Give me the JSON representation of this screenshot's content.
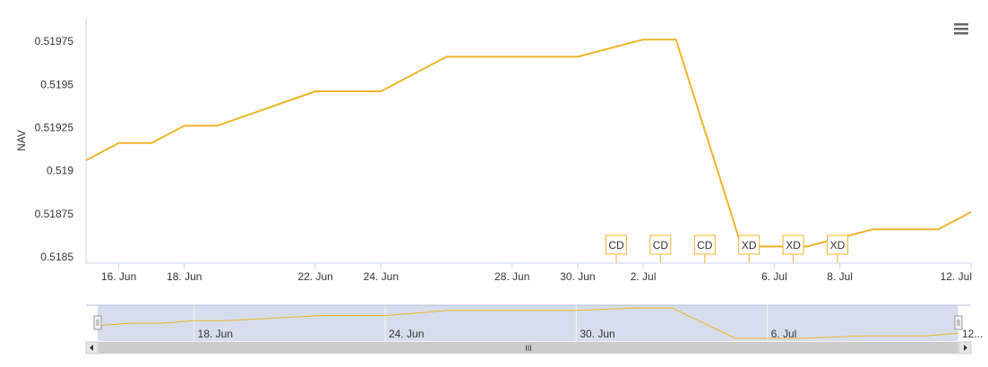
{
  "chart_data": {
    "type": "line",
    "title": "",
    "xlabel": "",
    "ylabel": "NAV",
    "ylim": [
      0.5185,
      0.52
    ],
    "yticks": [
      "0.5185",
      "0.51875",
      "0.519",
      "0.51925",
      "0.5195",
      "0.51975"
    ],
    "xlim": [
      "2024-06-15",
      "2024-07-12"
    ],
    "xticks": [
      {
        "date": "2024-06-16",
        "label": "16. Jun"
      },
      {
        "date": "2024-06-18",
        "label": "18. Jun"
      },
      {
        "date": "2024-06-22",
        "label": "22. Jun"
      },
      {
        "date": "2024-06-24",
        "label": "24. Jun"
      },
      {
        "date": "2024-06-28",
        "label": "28. Jun"
      },
      {
        "date": "2024-06-30",
        "label": "30. Jun"
      },
      {
        "date": "2024-07-02",
        "label": "2. Jul"
      },
      {
        "date": "2024-07-06",
        "label": "6. Jul"
      },
      {
        "date": "2024-07-08",
        "label": "8. Jul"
      },
      {
        "date": "2024-07-12",
        "label": "12. Jul"
      }
    ],
    "grid": false,
    "legend": "none",
    "series": [
      {
        "color": "#f0b429",
        "points": [
          [
            "2024-06-15",
            0.51906
          ],
          [
            "2024-06-16",
            0.51916
          ],
          [
            "2024-06-17",
            0.51916
          ],
          [
            "2024-06-18",
            0.51926
          ],
          [
            "2024-06-19",
            0.51926
          ],
          [
            "2024-06-22",
            0.51946
          ],
          [
            "2024-06-24",
            0.51946
          ],
          [
            "2024-06-26",
            0.51966
          ],
          [
            "2024-06-30",
            0.51966
          ],
          [
            "2024-07-02",
            0.51976
          ],
          [
            "2024-07-03",
            0.51976
          ],
          [
            "2024-07-05",
            0.51856
          ],
          [
            "2024-07-06",
            0.51856
          ],
          [
            "2024-07-07",
            0.51856
          ],
          [
            "2024-07-09",
            0.51866
          ],
          [
            "2024-07-11",
            0.51866
          ],
          [
            "2024-07-12",
            0.51876
          ]
        ]
      }
    ],
    "flags": [
      {
        "date": "2024-07-01",
        "label": "CD"
      },
      {
        "date": "2024-07-02",
        "label": "CD"
      },
      {
        "date": "2024-07-03",
        "label": "CD"
      },
      {
        "date": "2024-07-04",
        "label": "XD"
      },
      {
        "date": "2024-07-05",
        "label": "XD"
      },
      {
        "date": "2024-07-06",
        "label": "XD"
      }
    ],
    "navigator": {
      "xticks": [
        {
          "date": "2024-06-18",
          "label": "18. Jun"
        },
        {
          "date": "2024-06-24",
          "label": "24. Jun"
        },
        {
          "date": "2024-06-30",
          "label": "30. Jun"
        },
        {
          "date": "2024-07-06",
          "label": "6. Jul"
        },
        {
          "date": "2024-07-12",
          "label": "12..."
        }
      ],
      "scrollbar_grip": "III"
    }
  },
  "colors": {
    "line": "#f0b429",
    "axis": "#ccd6eb",
    "text": "#333333",
    "navigator_mask": "#cfd8ea",
    "scrollbar": "#e6e6e6",
    "menu": "#666666"
  },
  "icons": {
    "context_menu": "hamburger-menu-icon",
    "scroll_left": "arrow-left-icon",
    "scroll_right": "arrow-right-icon"
  }
}
